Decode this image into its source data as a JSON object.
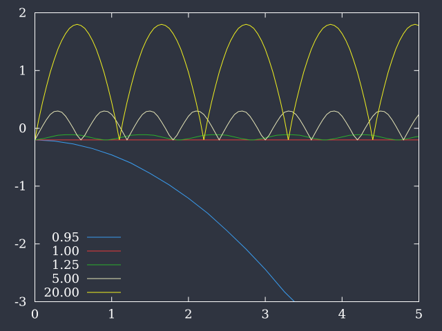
{
  "chart_data": {
    "type": "line",
    "title": "",
    "xlabel": "",
    "ylabel": "",
    "xlim": [
      0,
      5
    ],
    "ylim": [
      -3,
      2
    ],
    "x_ticks": [
      "0",
      "1",
      "2",
      "3",
      "4",
      "5"
    ],
    "y_ticks": [
      "-3",
      "-2",
      "-1",
      "0",
      "1",
      "2"
    ],
    "grid": false,
    "legend_position": "bottom-left",
    "series": [
      {
        "name": "0.95",
        "color": "#3a9df0",
        "x": [
          0,
          0.25,
          0.5,
          0.75,
          1.0,
          1.25,
          1.5,
          1.75,
          2.0,
          2.25,
          2.5,
          2.75,
          3.0,
          3.25,
          3.38
        ],
        "y": [
          -0.2,
          -0.22,
          -0.27,
          -0.35,
          -0.46,
          -0.6,
          -0.78,
          -0.98,
          -1.21,
          -1.47,
          -1.77,
          -2.09,
          -2.44,
          -2.83,
          -3.0
        ]
      },
      {
        "name": "1.00",
        "color": "#e83a3a",
        "x": [
          0,
          5
        ],
        "y": [
          -0.2,
          -0.2
        ]
      },
      {
        "name": "1.25",
        "color": "#2bb02b",
        "x": [
          0,
          0.1,
          0.2,
          0.3,
          0.4,
          0.5,
          0.6,
          0.7,
          0.8,
          0.9,
          0.95,
          1.05,
          1.15,
          1.25,
          1.35,
          1.45,
          1.55,
          1.65,
          1.75,
          1.85,
          1.9,
          2.0,
          2.1,
          2.2,
          2.3,
          2.4,
          2.5,
          2.6,
          2.7,
          2.8,
          2.85,
          2.95,
          3.05,
          3.15,
          3.25,
          3.35,
          3.45,
          3.55,
          3.65,
          3.75,
          3.8,
          3.9,
          4.0,
          4.1,
          4.2,
          4.3,
          4.4,
          4.5,
          4.6,
          4.7,
          4.75,
          4.85,
          4.95,
          5.0
        ],
        "y": [
          -0.2,
          -0.18,
          -0.15,
          -0.12,
          -0.11,
          -0.11,
          -0.12,
          -0.15,
          -0.18,
          -0.2,
          -0.2,
          -0.18,
          -0.15,
          -0.12,
          -0.11,
          -0.11,
          -0.12,
          -0.15,
          -0.18,
          -0.2,
          -0.2,
          -0.18,
          -0.15,
          -0.12,
          -0.11,
          -0.11,
          -0.12,
          -0.15,
          -0.18,
          -0.2,
          -0.2,
          -0.18,
          -0.15,
          -0.12,
          -0.11,
          -0.11,
          -0.12,
          -0.15,
          -0.18,
          -0.2,
          -0.2,
          -0.18,
          -0.15,
          -0.12,
          -0.11,
          -0.11,
          -0.12,
          -0.15,
          -0.18,
          -0.2,
          -0.2,
          -0.18,
          -0.15,
          -0.14
        ]
      },
      {
        "name": "5.00",
        "color": "#e6e6b8",
        "x": [
          0,
          0.05,
          0.1,
          0.15,
          0.2,
          0.25,
          0.3,
          0.35,
          0.4,
          0.45,
          0.5,
          0.55,
          0.6,
          0.65,
          0.7,
          0.75,
          0.8,
          0.85,
          0.9,
          0.95,
          1.0,
          1.05,
          1.1,
          1.15,
          1.2,
          1.25,
          1.3,
          1.35,
          1.4,
          1.45,
          1.5,
          1.55,
          1.6,
          1.65,
          1.7,
          1.75,
          1.8,
          1.85,
          1.9,
          1.95,
          2.0,
          2.05,
          2.1,
          2.15,
          2.2,
          2.25,
          2.3,
          2.35,
          2.4,
          2.45,
          2.5,
          2.55,
          2.6,
          2.65,
          2.7,
          2.75,
          2.8,
          2.85,
          2.9,
          2.95,
          3.0,
          3.05,
          3.1,
          3.15,
          3.2,
          3.25,
          3.3,
          3.35,
          3.4,
          3.45,
          3.5,
          3.55,
          3.6,
          3.65,
          3.7,
          3.75,
          3.8,
          3.85,
          3.9,
          3.95,
          4.0,
          4.05,
          4.1,
          4.15,
          4.2,
          4.25,
          4.3,
          4.35,
          4.4,
          4.45,
          4.5,
          4.55,
          4.6,
          4.65,
          4.7,
          4.75,
          4.8,
          4.85,
          4.9,
          4.95,
          5.0
        ],
        "y": [
          -0.2,
          -0.08,
          0.04,
          0.15,
          0.24,
          0.29,
          0.3,
          0.28,
          0.21,
          0.11,
          0.0,
          -0.12,
          -0.2,
          -0.12,
          0.0,
          0.11,
          0.21,
          0.28,
          0.3,
          0.29,
          0.24,
          0.15,
          0.04,
          -0.08,
          -0.2,
          -0.08,
          0.04,
          0.15,
          0.24,
          0.29,
          0.3,
          0.28,
          0.21,
          0.11,
          0.0,
          -0.12,
          -0.2,
          -0.12,
          0.0,
          0.11,
          0.21,
          0.28,
          0.3,
          0.29,
          0.24,
          0.15,
          0.04,
          -0.08,
          -0.2,
          -0.08,
          0.04,
          0.15,
          0.24,
          0.29,
          0.3,
          0.28,
          0.21,
          0.11,
          0.0,
          -0.12,
          -0.2,
          -0.12,
          0.0,
          0.11,
          0.21,
          0.28,
          0.3,
          0.29,
          0.24,
          0.15,
          0.04,
          -0.08,
          -0.2,
          -0.08,
          0.04,
          0.15,
          0.24,
          0.29,
          0.3,
          0.28,
          0.21,
          0.11,
          0.0,
          -0.12,
          -0.2,
          -0.12,
          0.0,
          0.11,
          0.21,
          0.28,
          0.3,
          0.29,
          0.24,
          0.15,
          0.04,
          -0.08,
          -0.2,
          -0.08,
          0.04,
          0.15,
          0.24
        ]
      },
      {
        "name": "20.00",
        "color": "#f0f020",
        "x": [
          0,
          0.05,
          0.1,
          0.15,
          0.2,
          0.25,
          0.3,
          0.35,
          0.4,
          0.45,
          0.5,
          0.55,
          0.6,
          0.65,
          0.7,
          0.75,
          0.8,
          0.85,
          0.9,
          0.95,
          1.0,
          1.05,
          1.1,
          1.15,
          1.2,
          1.25,
          1.3,
          1.35,
          1.4,
          1.45,
          1.5,
          1.55,
          1.6,
          1.65,
          1.7,
          1.75,
          1.8,
          1.85,
          1.9,
          1.95,
          2.0,
          2.05,
          2.1,
          2.15,
          2.2,
          2.25,
          2.3,
          2.35,
          2.4,
          2.45,
          2.5,
          2.55,
          2.6,
          2.65,
          2.7,
          2.75,
          2.8,
          2.85,
          2.9,
          2.95,
          3.0,
          3.05,
          3.1,
          3.15,
          3.2,
          3.25,
          3.3,
          3.35,
          3.4,
          3.45,
          3.5,
          3.55,
          3.6,
          3.65,
          3.7,
          3.75,
          3.8,
          3.85,
          3.9,
          3.95,
          4.0,
          4.05,
          4.1,
          4.15,
          4.2,
          4.25,
          4.3,
          4.35,
          4.4,
          4.45,
          4.5,
          4.55,
          4.6,
          4.65,
          4.7,
          4.75,
          4.8,
          4.85,
          4.9,
          4.95,
          5.0
        ],
        "y": [
          -0.2,
          0.15,
          0.45,
          0.72,
          0.97,
          1.18,
          1.37,
          1.52,
          1.64,
          1.73,
          1.78,
          1.8,
          1.78,
          1.73,
          1.64,
          1.52,
          1.37,
          1.18,
          0.97,
          0.72,
          0.45,
          0.15,
          -0.2,
          0.15,
          0.45,
          0.72,
          0.97,
          1.18,
          1.37,
          1.52,
          1.64,
          1.73,
          1.78,
          1.8,
          1.78,
          1.73,
          1.64,
          1.52,
          1.37,
          1.18,
          0.97,
          0.72,
          0.45,
          0.15,
          -0.2,
          0.15,
          0.45,
          0.72,
          0.97,
          1.18,
          1.37,
          1.52,
          1.64,
          1.73,
          1.78,
          1.8,
          1.78,
          1.73,
          1.64,
          1.52,
          1.37,
          1.18,
          0.97,
          0.72,
          0.45,
          0.15,
          -0.2,
          0.15,
          0.45,
          0.72,
          0.97,
          1.18,
          1.37,
          1.52,
          1.64,
          1.73,
          1.78,
          1.8,
          1.78,
          1.73,
          1.64,
          1.52,
          1.37,
          1.18,
          0.97,
          0.72,
          0.45,
          0.15,
          -0.2,
          0.15,
          0.45,
          0.72,
          0.97,
          1.18,
          1.37,
          1.52,
          1.64,
          1.73,
          1.78,
          1.8,
          1.78
        ]
      }
    ]
  },
  "colors": {
    "background": "#2f3440",
    "axis": "#ffffff",
    "text": "#ffffff"
  }
}
